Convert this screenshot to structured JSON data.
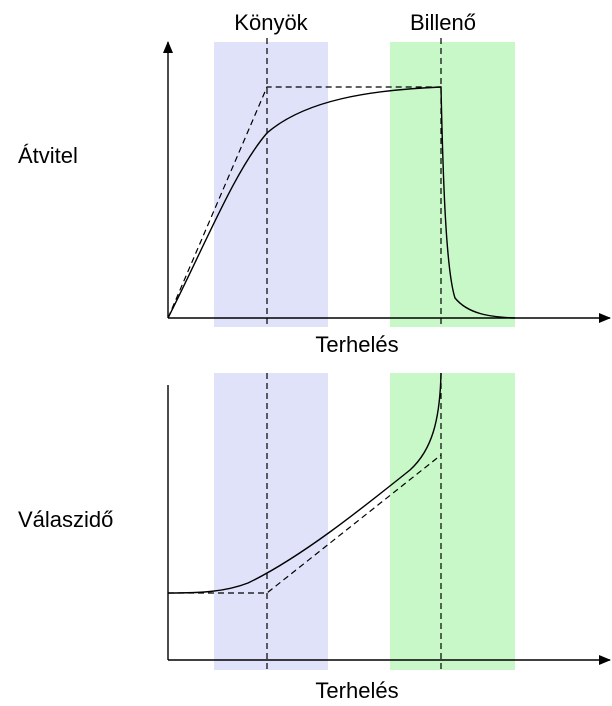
{
  "labels": {
    "knee": "Könyök",
    "cliff": "Billenő",
    "top_y": "Átvitel",
    "bottom_y": "Válaszidő",
    "top_x": "Terhelés",
    "bottom_x": "Terhelés"
  },
  "colors": {
    "knee_band": "#e0e2fa",
    "cliff_band": "#c8f8c8",
    "lines": "#000000"
  }
}
